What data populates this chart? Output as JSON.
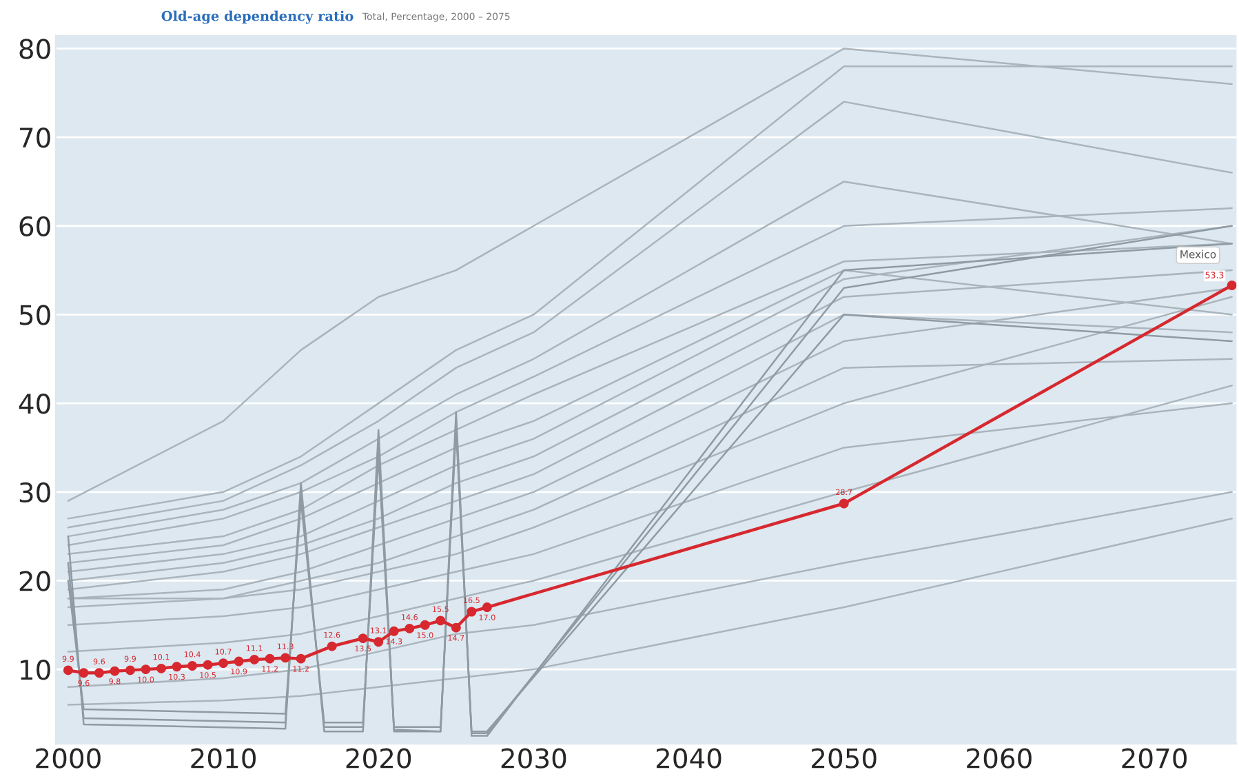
{
  "chart_data": {
    "type": "line",
    "title": "Old-age dependency ratio",
    "subtitle": "Total, Percentage, 2000 – 2075",
    "xlim": [
      1999.2,
      2075.3
    ],
    "ylim": [
      1.6,
      81.5
    ],
    "xticks": [
      2000,
      2010,
      2020,
      2030,
      2040,
      2050,
      2060,
      2070
    ],
    "yticks": [
      10,
      20,
      30,
      40,
      50,
      60,
      70,
      80
    ],
    "grid": "y",
    "marker": "none",
    "line_style": "solid",
    "series": [
      {
        "color": "#a9b4bc",
        "x": [
          2000,
          2010,
          2015,
          2020,
          2025,
          2030,
          2050,
          2075
        ],
        "values": [
          29,
          38,
          46,
          52,
          55,
          60,
          80,
          76
        ]
      },
      {
        "color": "#a9b4bc",
        "x": [
          2000,
          2010,
          2015,
          2020,
          2025,
          2030,
          2050,
          2075
        ],
        "values": [
          27,
          30,
          34,
          40,
          46,
          50,
          78,
          78
        ]
      },
      {
        "color": "#a9b4bc",
        "x": [
          2000,
          2010,
          2015,
          2020,
          2025,
          2030,
          2050,
          2075
        ],
        "values": [
          26,
          29,
          33,
          38,
          44,
          48,
          74,
          66
        ]
      },
      {
        "color": "#a9b4bc",
        "x": [
          2000,
          2010,
          2015,
          2020,
          2025,
          2030,
          2050,
          2075
        ],
        "values": [
          25,
          28,
          31,
          36,
          41,
          45,
          65,
          58
        ]
      },
      {
        "color": "#a9b4bc",
        "x": [
          2000,
          2010,
          2015,
          2020,
          2025,
          2030,
          2050,
          2075
        ],
        "values": [
          24,
          27,
          30,
          34,
          39,
          43,
          60,
          62
        ]
      },
      {
        "color": "#a9b4bc",
        "x": [
          2000,
          2010,
          2015,
          2020,
          2025,
          2030,
          2050,
          2075
        ],
        "values": [
          23,
          25,
          28,
          33,
          37,
          41,
          56,
          58
        ]
      },
      {
        "color": "#a9b4bc",
        "x": [
          2000,
          2010,
          2015,
          2020,
          2025,
          2030,
          2050,
          2075
        ],
        "values": [
          22,
          24,
          27,
          31,
          35,
          38,
          55,
          50
        ]
      },
      {
        "color": "#a9b4bc",
        "x": [
          2000,
          2010,
          2015,
          2020,
          2025,
          2030,
          2050,
          2075
        ],
        "values": [
          21,
          23,
          25,
          29,
          33,
          36,
          54,
          60
        ]
      },
      {
        "color": "#a9b4bc",
        "x": [
          2000,
          2010,
          2015,
          2020,
          2025,
          2030,
          2050,
          2075
        ],
        "values": [
          20,
          22,
          24,
          27,
          31,
          34,
          52,
          55
        ]
      },
      {
        "color": "#a9b4bc",
        "x": [
          2000,
          2010,
          2015,
          2020,
          2025,
          2030,
          2050,
          2075
        ],
        "values": [
          19,
          21,
          23,
          26,
          29,
          32,
          50,
          48
        ]
      },
      {
        "color": "#a9b4bc",
        "x": [
          2000,
          2010,
          2015,
          2020,
          2025,
          2030,
          2050,
          2075
        ],
        "values": [
          18,
          19,
          21,
          24,
          27,
          30,
          47,
          53
        ]
      },
      {
        "color": "#a9b4bc",
        "x": [
          2000,
          2010,
          2015,
          2020,
          2025,
          2030,
          2050,
          2075
        ],
        "values": [
          18,
          18,
          20,
          22,
          25,
          28,
          44,
          45
        ]
      },
      {
        "color": "#a9b4bc",
        "x": [
          2000,
          2010,
          2015,
          2020,
          2025,
          2030,
          2050,
          2075
        ],
        "values": [
          17,
          18,
          19,
          21,
          23,
          26,
          40,
          52
        ]
      },
      {
        "color": "#a9b4bc",
        "x": [
          2000,
          2010,
          2015,
          2020,
          2025,
          2030,
          2050,
          2075
        ],
        "values": [
          15,
          16,
          17,
          19,
          21,
          23,
          35,
          40
        ]
      },
      {
        "color": "#a9b4bc",
        "x": [
          2000,
          2010,
          2015,
          2020,
          2025,
          2030,
          2050,
          2075
        ],
        "values": [
          12,
          13,
          14,
          16,
          18,
          20,
          30,
          42
        ]
      },
      {
        "color": "#a9b4bc",
        "x": [
          2000,
          2010,
          2015,
          2020,
          2025,
          2030,
          2050,
          2075
        ],
        "values": [
          8,
          9,
          10,
          12,
          14,
          15,
          22,
          30
        ]
      },
      {
        "color": "#a9b4bc",
        "x": [
          2000,
          2010,
          2015,
          2020,
          2025,
          2030,
          2050,
          2075
        ],
        "values": [
          6,
          6.5,
          7,
          8,
          9,
          10,
          17,
          27
        ]
      },
      {
        "color": "#8f9ba4",
        "x": [
          2000,
          2001,
          2014,
          2015,
          2016.5,
          2019,
          2020,
          2021,
          2024,
          2025,
          2026,
          2027,
          2050,
          2075
        ],
        "values": [
          25,
          3.8,
          3.3,
          31,
          3,
          3,
          37,
          3,
          3,
          39,
          2.5,
          2.5,
          55,
          58
        ]
      },
      {
        "color": "#8f9ba4",
        "x": [
          2000,
          2001,
          2014,
          2015,
          2016.5,
          2019,
          2020,
          2021,
          2024,
          2025,
          2026,
          2027,
          2050,
          2075
        ],
        "values": [
          22,
          4.5,
          4,
          30,
          3.5,
          3.5,
          35,
          3.2,
          3,
          38,
          2.8,
          2.8,
          53,
          60
        ]
      },
      {
        "color": "#8f9ba4",
        "x": [
          2000,
          2001,
          2014,
          2015,
          2016.5,
          2019,
          2020,
          2021,
          2024,
          2025,
          2026,
          2027,
          2050,
          2075
        ],
        "values": [
          20,
          5.5,
          5,
          29,
          4,
          4,
          34,
          3.5,
          3.5,
          37,
          3,
          3,
          50,
          47
        ]
      },
      {
        "name": "Mexico",
        "color": "#d7282f",
        "marker": "circle",
        "value_labels": [
          "9.9",
          "9.6",
          "9.6",
          "9.8",
          "9.9",
          "10.0",
          "10.1",
          "10.3",
          "10.4",
          "10.5",
          "10.7",
          "10.9",
          "11.1",
          "11.2",
          "11.3",
          "11.2",
          "12.6",
          "13.5",
          "13.1",
          "14.3",
          "14.6",
          "15.0",
          "15.5",
          "14.7",
          "16.5",
          "17.0",
          "28.7",
          "53.3"
        ],
        "x": [
          2000,
          2001,
          2002,
          2003,
          2004,
          2005,
          2006,
          2007,
          2008,
          2009,
          2010,
          2011,
          2012,
          2013,
          2014,
          2015,
          2017,
          2019,
          2020,
          2021,
          2022,
          2023,
          2024,
          2025,
          2026,
          2027,
          2050,
          2075
        ],
        "values": [
          9.9,
          9.6,
          9.6,
          9.8,
          9.9,
          10.0,
          10.1,
          10.3,
          10.4,
          10.5,
          10.7,
          10.9,
          11.1,
          11.2,
          11.3,
          11.2,
          12.6,
          13.5,
          13.1,
          14.3,
          14.6,
          15.0,
          15.5,
          14.7,
          16.5,
          17.0,
          28.7,
          53.3
        ]
      }
    ]
  }
}
